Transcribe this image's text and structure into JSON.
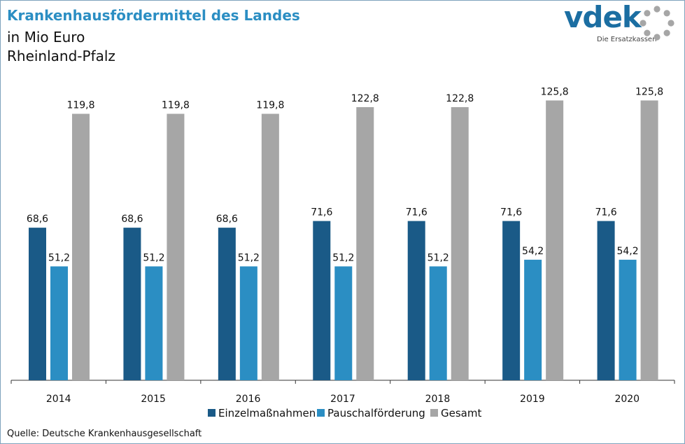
{
  "header": {
    "title": "Krankenhausfördermittel des Landes",
    "unit": "in Mio Euro",
    "region": "Rheinland-Pfalz"
  },
  "logo": {
    "wordmark": "vdek",
    "tagline": "Die Ersatzkassen",
    "icon": "dotted-ring-icon"
  },
  "chart_data": {
    "type": "bar",
    "categories": [
      "2014",
      "2015",
      "2016",
      "2017",
      "2018",
      "2019",
      "2020"
    ],
    "series": [
      {
        "name": "Einzelmaßnahmen",
        "values": [
          68.6,
          68.6,
          68.6,
          71.6,
          71.6,
          71.6,
          71.6
        ],
        "labels": [
          "68,6",
          "68,6",
          "68,6",
          "71,6",
          "71,6",
          "71,6",
          "71,6"
        ],
        "color": "#1a5a87"
      },
      {
        "name": "Pauschalförderung",
        "values": [
          51.2,
          51.2,
          51.2,
          51.2,
          51.2,
          54.2,
          54.2
        ],
        "labels": [
          "51,2",
          "51,2",
          "51,2",
          "51,2",
          "51,2",
          "54,2",
          "54,2"
        ],
        "color": "#2b8ec3"
      },
      {
        "name": "Gesamt",
        "values": [
          119.8,
          119.8,
          119.8,
          122.8,
          122.8,
          125.8,
          125.8
        ],
        "labels": [
          "119,8",
          "119,8",
          "119,8",
          "122,8",
          "122,8",
          "125,8",
          "125,8"
        ],
        "color": "#a6a6a6"
      }
    ],
    "ylim": [
      0,
      142
    ],
    "grid": false,
    "legend": "bottom-center",
    "data_labels": true
  },
  "footer": {
    "source": "Quelle: Deutsche Krankenhausgesellschaft"
  }
}
